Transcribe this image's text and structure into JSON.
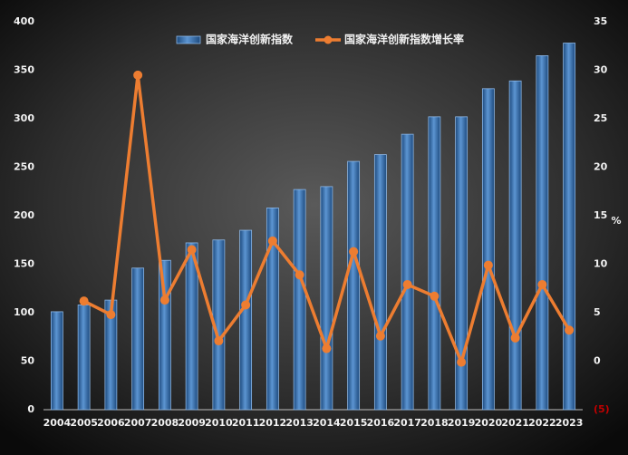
{
  "chart_data": {
    "type": "bar-line",
    "categories": [
      "2004",
      "2005",
      "2006",
      "2007",
      "2008",
      "2009",
      "2010",
      "2011",
      "2012",
      "2013",
      "2014",
      "2015",
      "2016",
      "2017",
      "2018",
      "2019",
      "2020",
      "2021",
      "2022",
      "2023"
    ],
    "series": [
      {
        "name": "国家海洋创新指数",
        "type": "bar",
        "color": "#3f78b5",
        "values": [
          101,
          108,
          113,
          146,
          154,
          172,
          175,
          185,
          208,
          227,
          230,
          256,
          263,
          284,
          302,
          302,
          331,
          339,
          365,
          378
        ]
      },
      {
        "name": "国家海洋创新指数增长率",
        "type": "line",
        "color": "#ed7d31",
        "axis": "y2",
        "values": [
          null,
          6.2,
          4.8,
          29.5,
          6.3,
          11.5,
          2.1,
          5.8,
          12.4,
          8.9,
          1.3,
          11.3,
          2.6,
          7.9,
          6.7,
          -0.1,
          9.9,
          2.4,
          7.9,
          3.2
        ]
      }
    ],
    "ylim": [
      0,
      400
    ],
    "yticks": [
      0,
      50,
      100,
      150,
      200,
      250,
      300,
      350,
      400
    ],
    "y2lim": [
      -5,
      35
    ],
    "y2ticks": [
      {
        "value": -5,
        "label": "(5)"
      },
      0,
      5,
      10,
      15,
      20,
      25,
      30,
      35
    ],
    "y2label": "%",
    "grid": false,
    "legend": "top"
  }
}
